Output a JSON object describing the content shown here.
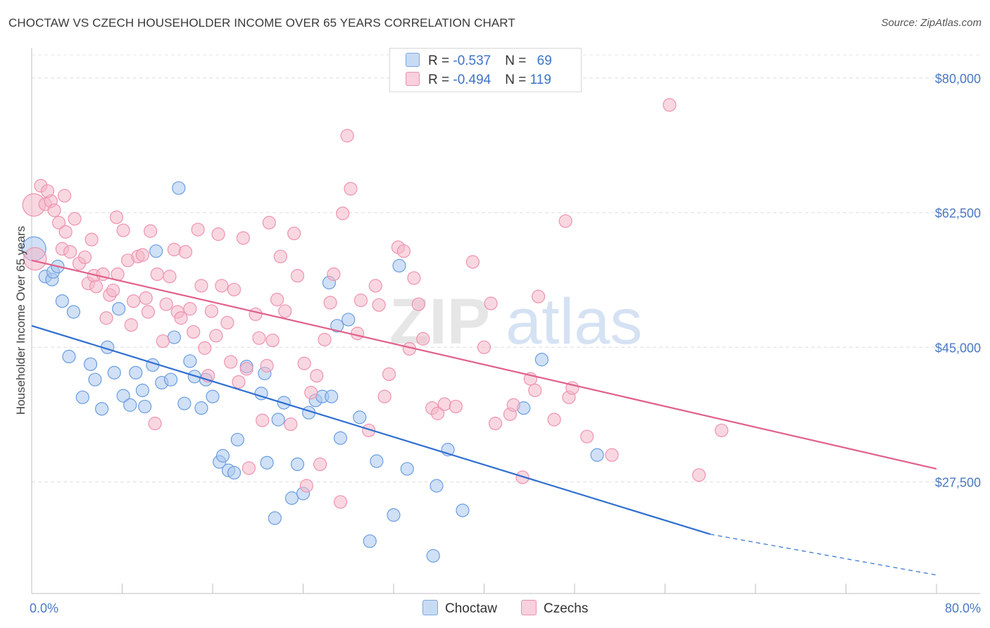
{
  "header": {
    "title": "CHOCTAW VS CZECH HOUSEHOLDER INCOME OVER 65 YEARS CORRELATION CHART",
    "source": "Source: ZipAtlas.com"
  },
  "legend": {
    "rows": [
      {
        "r_label": "R = ",
        "r_value": "-0.537",
        "n_label": "N = ",
        "n_value": "69",
        "color": "#a9c7ef"
      },
      {
        "r_label": "R = ",
        "r_value": "-0.494",
        "n_label": "N = ",
        "n_value": "119",
        "color": "#f4b6c9"
      }
    ]
  },
  "watermark": {
    "zip": "ZIP",
    "atlas": "atlas"
  },
  "chart_data": {
    "type": "scatter",
    "title": "CHOCTAW VS CZECH HOUSEHOLDER INCOME OVER 65 YEARS CORRELATION CHART",
    "ylabel": "Householder Income Over 65 years",
    "xlim": [
      0,
      80
    ],
    "ylim": [
      13000,
      83000
    ],
    "x_tick_labels": [
      {
        "value": 0,
        "label": "0.0%"
      },
      {
        "value": 80,
        "label": "80.0%"
      }
    ],
    "y_ticks": [
      {
        "value": 80000,
        "label": "$80,000"
      },
      {
        "value": 62500,
        "label": "$62,500"
      },
      {
        "value": 45000,
        "label": "$45,000"
      },
      {
        "value": 27500,
        "label": "$27,500"
      }
    ],
    "grid": "horizontal dashed",
    "legend_position": "bottom-center",
    "series": [
      {
        "name": "Choctaw",
        "color": "#6a9ee0",
        "fill": "#a9c7ef",
        "line_color": "#2f6fd0",
        "trend": {
          "x0": 0,
          "y0": 47800,
          "x1": 60,
          "y1": 20700,
          "dashed_to_x": 80,
          "dashed_to_y": 15400
        },
        "points": [
          [
            0.2,
            57800
          ],
          [
            1.2,
            54200
          ],
          [
            1.8,
            53800
          ],
          [
            1.9,
            54800
          ],
          [
            2.3,
            55500
          ],
          [
            2.7,
            51000
          ],
          [
            3.3,
            43800
          ],
          [
            3.7,
            49600
          ],
          [
            4.5,
            38500
          ],
          [
            5.2,
            42800
          ],
          [
            5.6,
            40800
          ],
          [
            6.2,
            37000
          ],
          [
            6.7,
            45000
          ],
          [
            7.3,
            41700
          ],
          [
            7.7,
            50000
          ],
          [
            8.1,
            38700
          ],
          [
            8.7,
            37500
          ],
          [
            9.2,
            41700
          ],
          [
            9.8,
            39400
          ],
          [
            10.0,
            37300
          ],
          [
            10.7,
            42700
          ],
          [
            11.5,
            40400
          ],
          [
            12.3,
            40800
          ],
          [
            11.0,
            57500
          ],
          [
            12.6,
            46300
          ],
          [
            13.0,
            65700
          ],
          [
            13.5,
            37700
          ],
          [
            14.0,
            43200
          ],
          [
            14.4,
            41200
          ],
          [
            15.0,
            37100
          ],
          [
            15.4,
            40800
          ],
          [
            16.0,
            38600
          ],
          [
            16.6,
            30100
          ],
          [
            16.9,
            30900
          ],
          [
            17.4,
            29000
          ],
          [
            17.9,
            28700
          ],
          [
            18.2,
            33000
          ],
          [
            19.0,
            42500
          ],
          [
            20.3,
            39000
          ],
          [
            20.6,
            41600
          ],
          [
            20.8,
            30000
          ],
          [
            21.8,
            35600
          ],
          [
            21.5,
            22800
          ],
          [
            22.3,
            37800
          ],
          [
            23.0,
            25400
          ],
          [
            23.5,
            29800
          ],
          [
            24.0,
            26000
          ],
          [
            24.5,
            36500
          ],
          [
            25.1,
            38100
          ],
          [
            25.7,
            38600
          ],
          [
            26.3,
            53400
          ],
          [
            26.5,
            38600
          ],
          [
            27.0,
            47800
          ],
          [
            27.3,
            33200
          ],
          [
            28.0,
            48600
          ],
          [
            29.0,
            35900
          ],
          [
            29.9,
            19800
          ],
          [
            30.5,
            30200
          ],
          [
            32.0,
            23200
          ],
          [
            32.5,
            55600
          ],
          [
            33.2,
            29200
          ],
          [
            35.5,
            17900
          ],
          [
            35.8,
            27000
          ],
          [
            36.8,
            31700
          ],
          [
            38.1,
            23800
          ],
          [
            43.5,
            37100
          ],
          [
            45.1,
            43400
          ],
          [
            50.0,
            31000
          ]
        ]
      },
      {
        "name": "Czechs",
        "color": "#ee93b0",
        "fill": "#f4b6c9",
        "line_color": "#e0608a",
        "trend": {
          "x0": 0,
          "y0": 56300,
          "x1": 80,
          "y1": 29200
        },
        "points": [
          [
            0.2,
            63500
          ],
          [
            0.3,
            56500
          ],
          [
            0.8,
            66000
          ],
          [
            1.2,
            63600
          ],
          [
            1.7,
            64000
          ],
          [
            1.4,
            65300
          ],
          [
            2.0,
            62800
          ],
          [
            2.4,
            61200
          ],
          [
            2.7,
            57800
          ],
          [
            2.9,
            64700
          ],
          [
            3.0,
            60000
          ],
          [
            3.4,
            57400
          ],
          [
            3.8,
            61700
          ],
          [
            4.2,
            55900
          ],
          [
            4.7,
            56700
          ],
          [
            5.0,
            53300
          ],
          [
            5.3,
            59000
          ],
          [
            5.5,
            54300
          ],
          [
            5.7,
            52900
          ],
          [
            6.3,
            54500
          ],
          [
            6.6,
            48800
          ],
          [
            6.9,
            51800
          ],
          [
            7.2,
            52400
          ],
          [
            7.6,
            54500
          ],
          [
            7.5,
            61900
          ],
          [
            8.1,
            60200
          ],
          [
            8.5,
            56300
          ],
          [
            8.8,
            47900
          ],
          [
            9.0,
            51000
          ],
          [
            9.4,
            56800
          ],
          [
            9.8,
            57000
          ],
          [
            10.1,
            51400
          ],
          [
            10.3,
            49600
          ],
          [
            10.5,
            60100
          ],
          [
            10.9,
            35100
          ],
          [
            11.1,
            54500
          ],
          [
            11.6,
            45800
          ],
          [
            11.9,
            50600
          ],
          [
            12.2,
            54200
          ],
          [
            12.6,
            57700
          ],
          [
            12.9,
            49600
          ],
          [
            13.2,
            48800
          ],
          [
            13.6,
            57400
          ],
          [
            14.0,
            50000
          ],
          [
            14.3,
            47000
          ],
          [
            14.7,
            60300
          ],
          [
            15.0,
            53000
          ],
          [
            15.3,
            44900
          ],
          [
            15.6,
            41300
          ],
          [
            15.9,
            49700
          ],
          [
            16.3,
            46500
          ],
          [
            16.5,
            59700
          ],
          [
            16.8,
            53000
          ],
          [
            17.3,
            48200
          ],
          [
            17.6,
            43100
          ],
          [
            17.9,
            52500
          ],
          [
            18.3,
            40500
          ],
          [
            18.7,
            59200
          ],
          [
            19.0,
            42200
          ],
          [
            19.2,
            29300
          ],
          [
            19.8,
            49300
          ],
          [
            20.1,
            46200
          ],
          [
            20.4,
            35500
          ],
          [
            20.8,
            42600
          ],
          [
            21.0,
            61200
          ],
          [
            21.3,
            45900
          ],
          [
            21.7,
            51200
          ],
          [
            22.0,
            56800
          ],
          [
            22.4,
            49700
          ],
          [
            22.9,
            35000
          ],
          [
            23.2,
            59800
          ],
          [
            23.5,
            54300
          ],
          [
            24.1,
            42900
          ],
          [
            24.3,
            27000
          ],
          [
            24.7,
            39100
          ],
          [
            25.2,
            41300
          ],
          [
            25.5,
            29800
          ],
          [
            25.9,
            46000
          ],
          [
            26.4,
            50800
          ],
          [
            26.7,
            54500
          ],
          [
            27.3,
            24900
          ],
          [
            27.5,
            62400
          ],
          [
            27.9,
            72500
          ],
          [
            28.2,
            65600
          ],
          [
            28.8,
            46800
          ],
          [
            29.1,
            51100
          ],
          [
            29.8,
            34200
          ],
          [
            30.4,
            53000
          ],
          [
            30.7,
            50500
          ],
          [
            31.2,
            38600
          ],
          [
            31.6,
            41500
          ],
          [
            32.4,
            58000
          ],
          [
            32.9,
            57500
          ],
          [
            33.4,
            44800
          ],
          [
            33.8,
            54000
          ],
          [
            34.2,
            50600
          ],
          [
            34.6,
            46100
          ],
          [
            35.4,
            37100
          ],
          [
            35.9,
            36400
          ],
          [
            36.5,
            37600
          ],
          [
            37.5,
            37300
          ],
          [
            39.0,
            56100
          ],
          [
            40.0,
            45000
          ],
          [
            40.6,
            50700
          ],
          [
            41.0,
            35100
          ],
          [
            42.3,
            36300
          ],
          [
            42.6,
            37500
          ],
          [
            43.4,
            28100
          ],
          [
            44.1,
            40900
          ],
          [
            44.5,
            39400
          ],
          [
            44.8,
            51600
          ],
          [
            46.2,
            35600
          ],
          [
            47.2,
            61400
          ],
          [
            47.5,
            38500
          ],
          [
            47.8,
            39700
          ],
          [
            49.1,
            33400
          ],
          [
            51.3,
            31000
          ],
          [
            56.4,
            76500
          ],
          [
            59.0,
            28400
          ],
          [
            61.0,
            34200
          ]
        ]
      }
    ]
  }
}
